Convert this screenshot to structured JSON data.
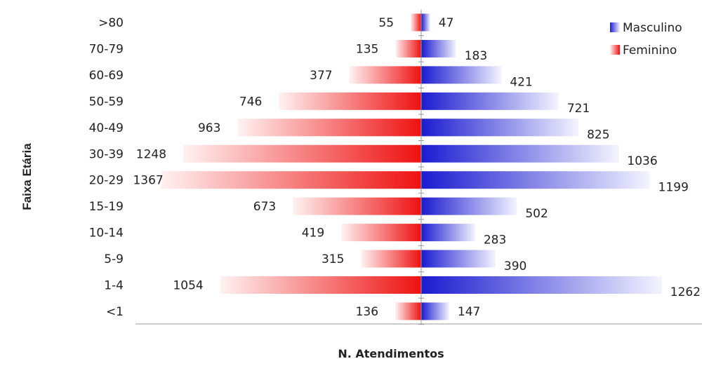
{
  "chart_data": {
    "type": "bar",
    "orientation": "horizontal-pyramid",
    "categories": [
      ">80",
      "70-79",
      "60-69",
      "50-59",
      "40-49",
      "30-39",
      "20-29",
      "15-19",
      "10-14",
      "5-9",
      "1-4",
      "<1"
    ],
    "series": [
      {
        "name": "Masculino",
        "side": "right",
        "color": "#1b1bd0",
        "values": [
          47,
          183,
          421,
          721,
          825,
          1036,
          1199,
          502,
          283,
          390,
          1262,
          147
        ]
      },
      {
        "name": "Feminino",
        "side": "left",
        "color": "#ee1111",
        "values": [
          55,
          135,
          377,
          746,
          963,
          1248,
          1367,
          673,
          419,
          315,
          1054,
          136
        ]
      }
    ],
    "xlabel": "N. Atendimentos",
    "ylabel": "Faixa Etária",
    "xlim": [
      -1500,
      1500
    ],
    "legend_position": "top-right",
    "grid": false
  }
}
